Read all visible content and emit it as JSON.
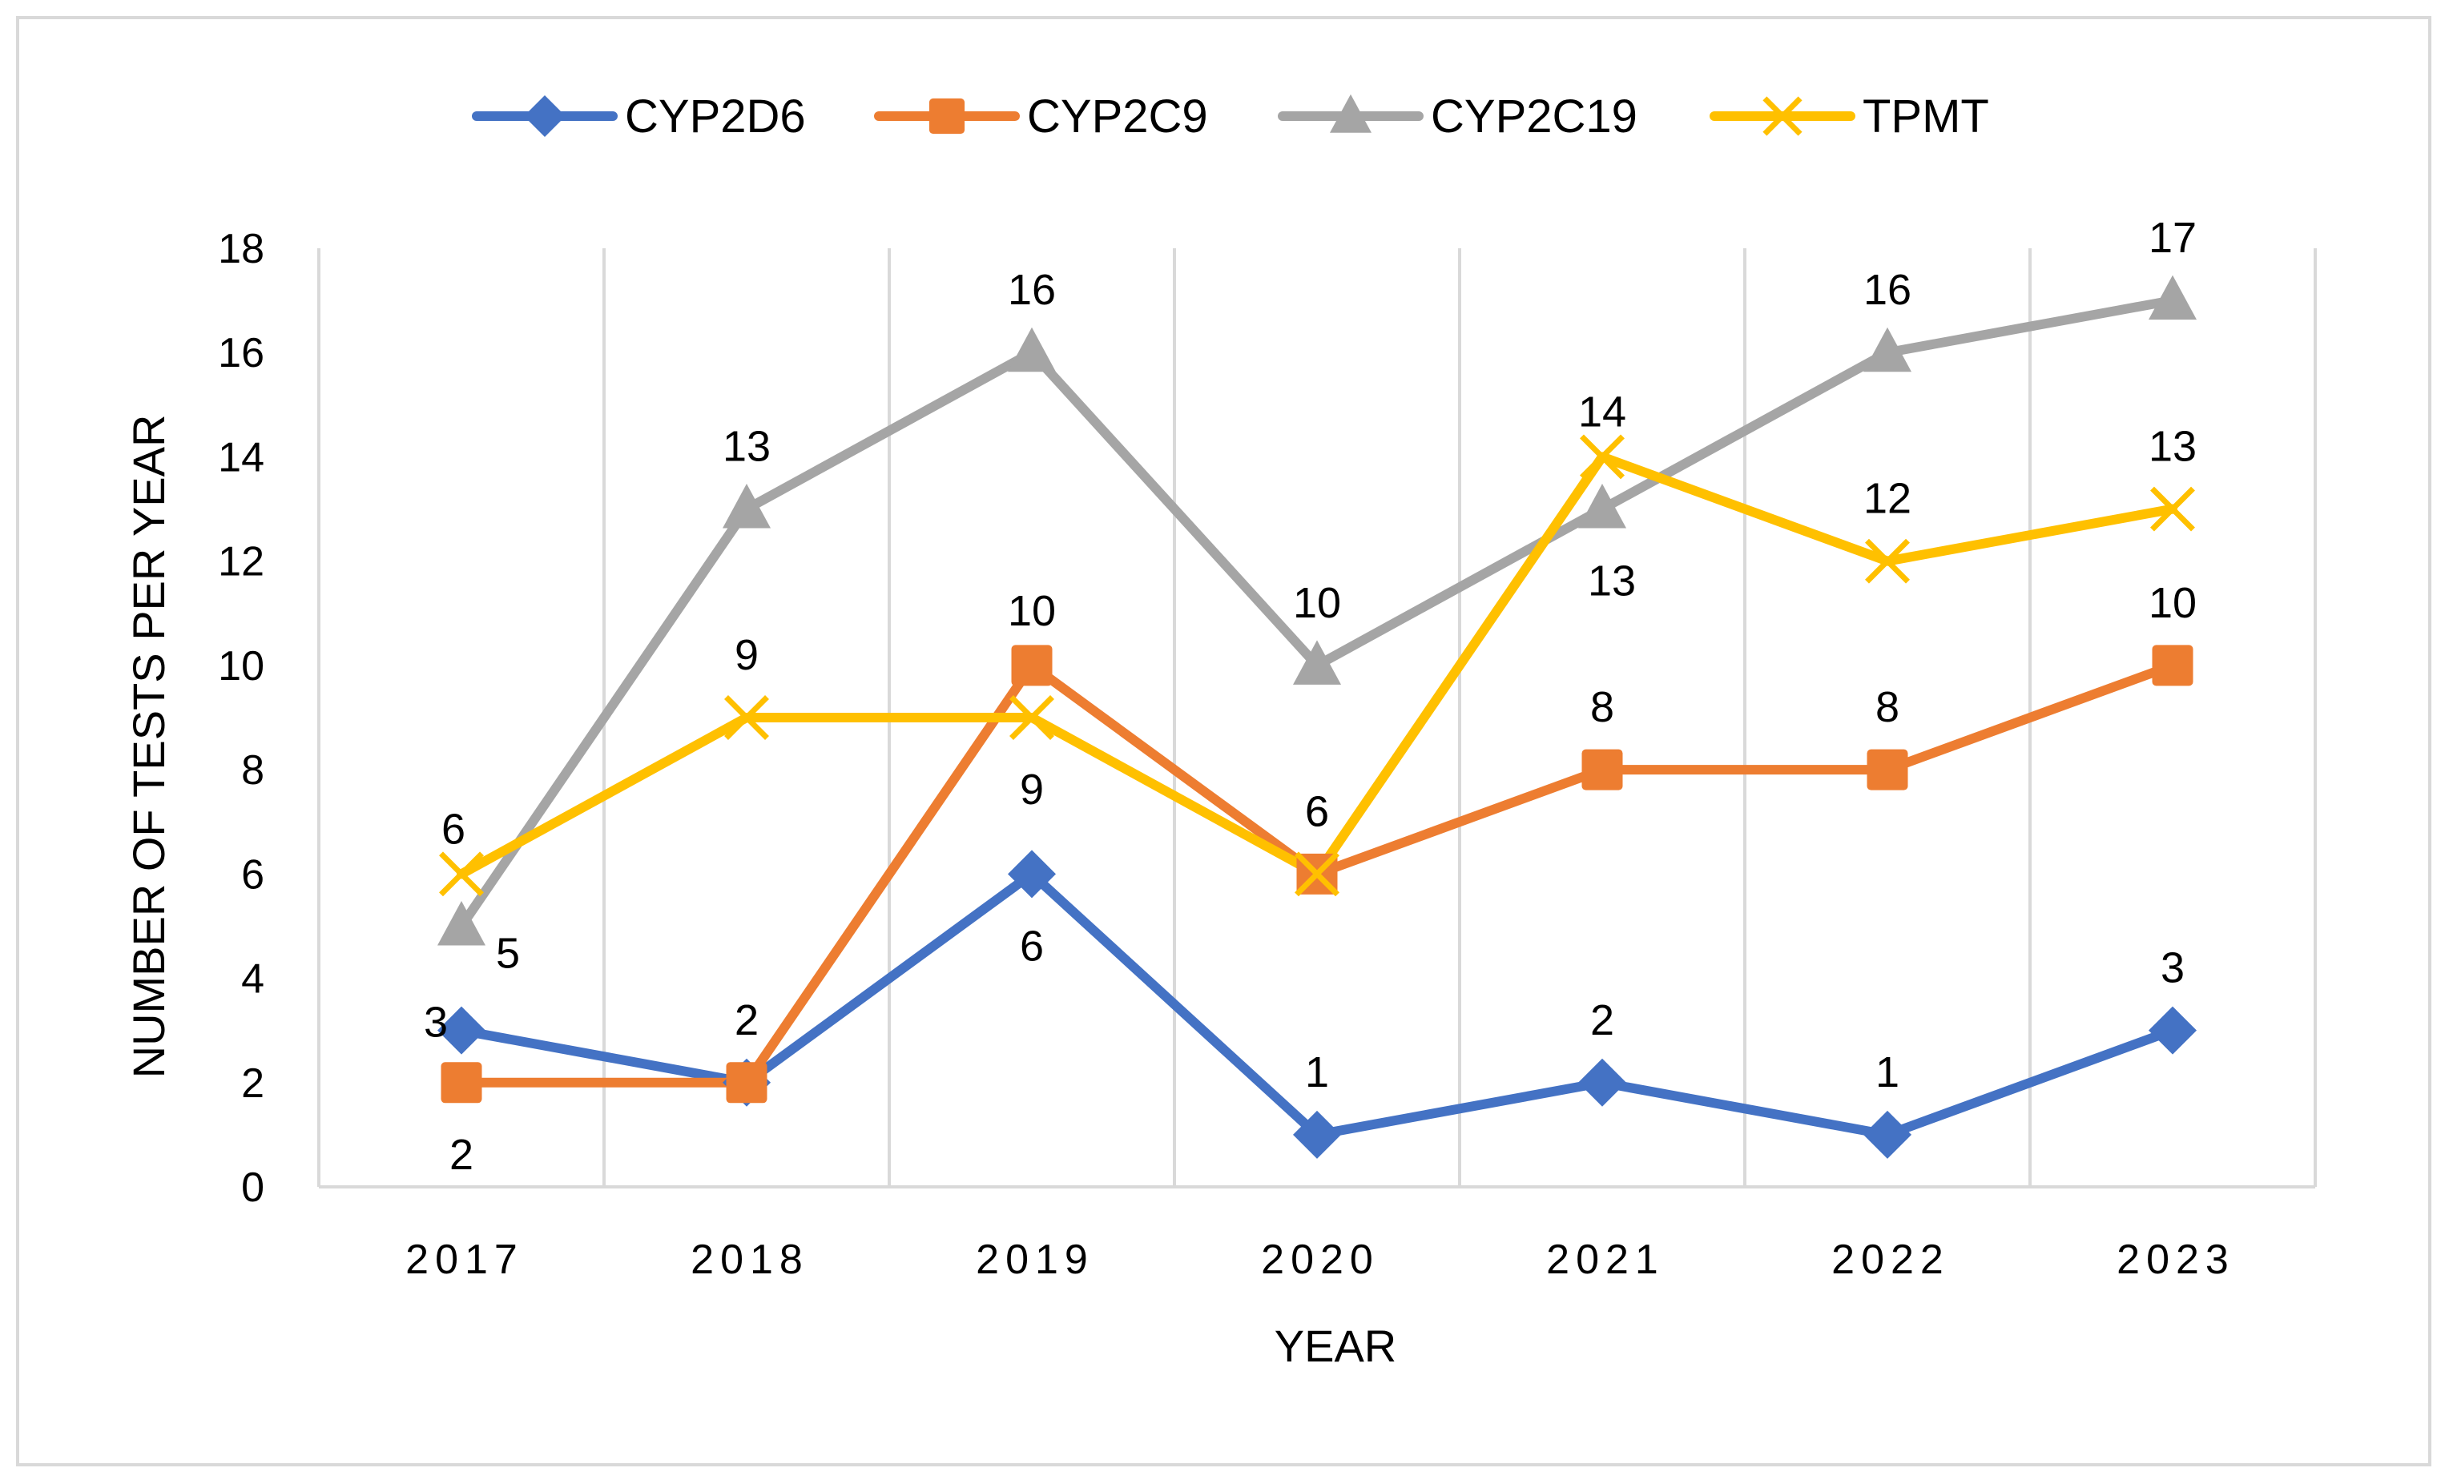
{
  "chart_data": {
    "type": "line",
    "title": "",
    "xlabel": "YEAR",
    "ylabel": "NUMBER OF TESTS PER YEAR",
    "categories": [
      "2017",
      "2018",
      "2019",
      "2020",
      "2021",
      "2022",
      "2023"
    ],
    "ylim": [
      0,
      18
    ],
    "yticks": [
      "0",
      "2",
      "4",
      "6",
      "8",
      "10",
      "12",
      "14",
      "16",
      "18"
    ],
    "legend_position": "top",
    "series": [
      {
        "name": "CYP2D6",
        "color": "#4472c4",
        "marker": "diamond",
        "values": [
          3,
          2,
          6,
          1,
          2,
          1,
          3
        ],
        "labels": [
          "3",
          "2",
          "6",
          "1",
          "2",
          "1",
          "3"
        ]
      },
      {
        "name": "CYP2C9",
        "color": "#ed7d31",
        "marker": "square",
        "values": [
          2,
          2,
          10,
          6,
          8,
          8,
          10
        ],
        "labels": [
          "2",
          "2",
          "10",
          "6",
          "8",
          "8",
          "10"
        ]
      },
      {
        "name": "CYP2C19",
        "color": "#a5a5a5",
        "marker": "triangle",
        "values": [
          5,
          13,
          16,
          10,
          13,
          16,
          17
        ],
        "labels": [
          "5",
          "13",
          "16",
          "10",
          "13",
          "16",
          "17"
        ]
      },
      {
        "name": "TPMT",
        "color": "#ffc000",
        "marker": "x",
        "values": [
          6,
          9,
          9,
          6,
          14,
          12,
          13
        ],
        "labels": [
          "6",
          "9",
          "9",
          "6",
          "14",
          "12",
          "13"
        ]
      }
    ]
  }
}
